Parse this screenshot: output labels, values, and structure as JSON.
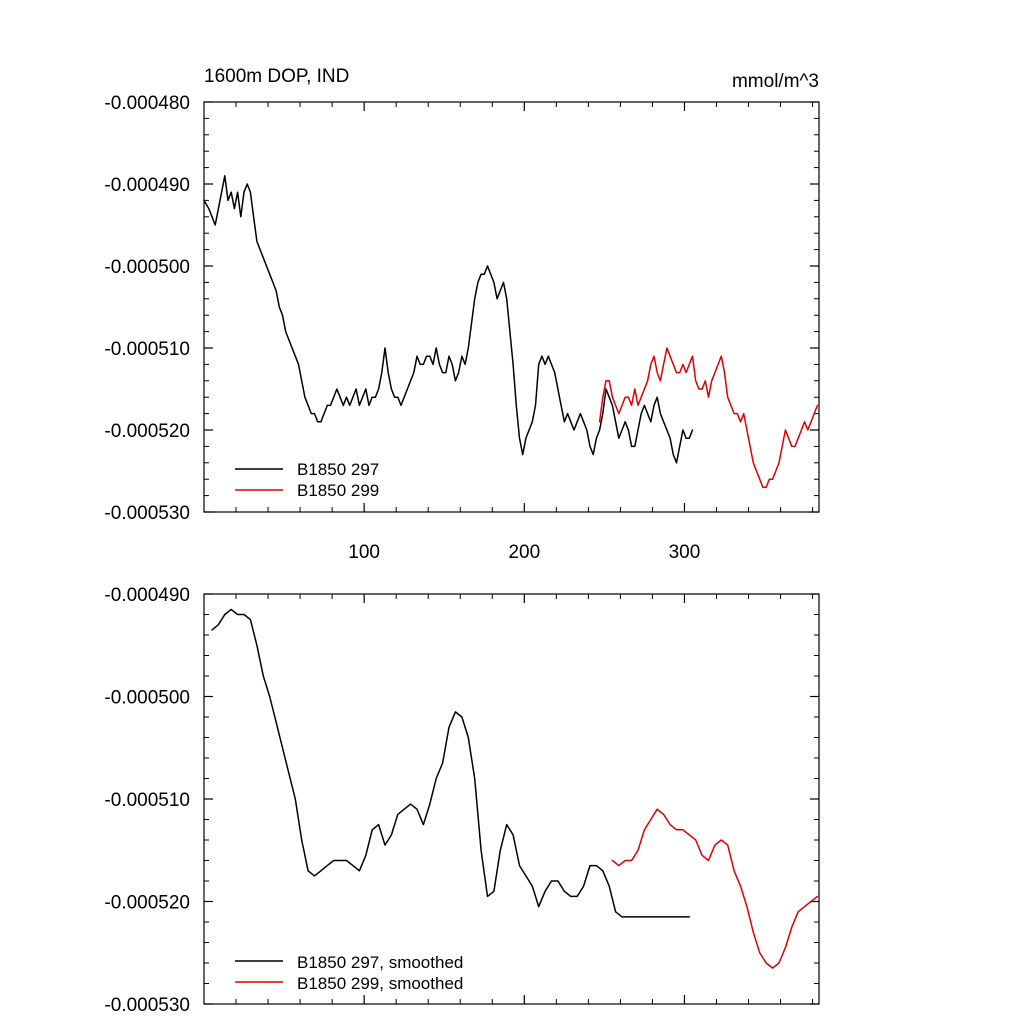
{
  "chart_data": [
    {
      "type": "line",
      "title": "1600m DOP, IND",
      "units": "mmol/m^3",
      "xlim": [
        0,
        384
      ],
      "ylim": [
        -0.00053,
        -0.00048
      ],
      "xticks": [
        100,
        200,
        300
      ],
      "xtick_labels": [
        "100",
        "200",
        "300"
      ],
      "yticks": [
        -0.00048,
        -0.00049,
        -0.0005,
        -0.00051,
        -0.00052,
        -0.00053
      ],
      "ytick_labels": [
        "-0.000480",
        "-0.000490",
        "-0.000500",
        "-0.000510",
        "-0.000520",
        "-0.000530"
      ],
      "legend_position": "bottom-left",
      "series": [
        {
          "name": "B1850 297",
          "color": "#000000",
          "x": [
            0,
            3,
            5,
            7,
            9,
            11,
            13,
            15,
            17,
            19,
            21,
            23,
            25,
            27,
            29,
            31,
            33,
            35,
            37,
            39,
            41,
            43,
            45,
            47,
            49,
            51,
            53,
            55,
            57,
            59,
            61,
            63,
            65,
            67,
            69,
            71,
            73,
            75,
            77,
            79,
            81,
            83,
            85,
            87,
            89,
            91,
            93,
            95,
            97,
            99,
            101,
            103,
            105,
            107,
            109,
            111,
            113,
            115,
            117,
            119,
            121,
            123,
            125,
            127,
            129,
            131,
            133,
            135,
            137,
            139,
            141,
            143,
            145,
            147,
            149,
            151,
            153,
            155,
            157,
            159,
            161,
            163,
            165,
            167,
            169,
            171,
            173,
            175,
            177,
            179,
            181,
            183,
            185,
            187,
            189,
            191,
            193,
            195,
            197,
            199,
            201,
            203,
            205,
            207,
            209,
            211,
            213,
            215,
            217,
            219,
            221,
            223,
            225,
            227,
            229,
            231,
            233,
            235,
            237,
            239,
            241,
            243,
            245,
            247,
            249,
            251,
            253,
            255,
            257,
            259,
            261,
            263,
            265,
            267,
            269,
            271,
            273,
            275,
            277,
            279,
            281,
            283,
            285,
            287,
            289,
            291,
            293,
            295,
            297,
            299,
            301,
            303,
            305
          ],
          "y": [
            -0.000492,
            -0.000493,
            -0.000494,
            -0.000495,
            -0.000493,
            -0.000491,
            -0.000489,
            -0.000492,
            -0.000491,
            -0.000493,
            -0.000491,
            -0.000494,
            -0.000491,
            -0.00049,
            -0.000491,
            -0.000494,
            -0.000497,
            -0.000498,
            -0.000499,
            -0.0005,
            -0.000501,
            -0.000502,
            -0.000503,
            -0.000505,
            -0.000506,
            -0.000508,
            -0.000509,
            -0.00051,
            -0.000511,
            -0.000512,
            -0.000514,
            -0.000516,
            -0.000517,
            -0.000518,
            -0.000518,
            -0.000519,
            -0.000519,
            -0.000518,
            -0.000517,
            -0.000517,
            -0.000516,
            -0.000515,
            -0.000516,
            -0.000517,
            -0.000516,
            -0.000517,
            -0.000516,
            -0.000515,
            -0.000517,
            -0.000516,
            -0.000515,
            -0.000517,
            -0.000516,
            -0.000516,
            -0.000515,
            -0.000513,
            -0.00051,
            -0.000513,
            -0.000515,
            -0.000516,
            -0.000516,
            -0.000517,
            -0.000516,
            -0.000515,
            -0.000514,
            -0.000513,
            -0.000511,
            -0.000512,
            -0.000512,
            -0.000511,
            -0.000511,
            -0.000512,
            -0.00051,
            -0.000512,
            -0.000513,
            -0.000513,
            -0.000511,
            -0.000512,
            -0.000514,
            -0.000513,
            -0.000511,
            -0.000512,
            -0.00051,
            -0.000507,
            -0.000504,
            -0.000502,
            -0.000501,
            -0.000501,
            -0.0005,
            -0.000501,
            -0.000502,
            -0.000504,
            -0.000503,
            -0.000502,
            -0.000504,
            -0.000508,
            -0.000512,
            -0.000517,
            -0.000521,
            -0.000523,
            -0.000521,
            -0.00052,
            -0.000519,
            -0.000517,
            -0.000512,
            -0.000511,
            -0.000512,
            -0.000511,
            -0.000512,
            -0.000513,
            -0.000515,
            -0.000517,
            -0.000519,
            -0.000518,
            -0.000519,
            -0.00052,
            -0.000519,
            -0.000518,
            -0.000519,
            -0.00052,
            -0.000522,
            -0.000523,
            -0.000521,
            -0.00052,
            -0.000518,
            -0.000515,
            -0.000516,
            -0.000517,
            -0.000519,
            -0.000521,
            -0.00052,
            -0.000519,
            -0.00052,
            -0.000522,
            -0.000522,
            -0.00052,
            -0.000518,
            -0.000517,
            -0.000518,
            -0.000519,
            -0.000517,
            -0.000516,
            -0.000518,
            -0.000519,
            -0.00052,
            -0.000521,
            -0.000523,
            -0.000524,
            -0.000522,
            -0.00052,
            -0.000521,
            -0.000521,
            -0.00052
          ]
        },
        {
          "name": "B1850 299",
          "color": "#e00000",
          "x": [
            247,
            249,
            251,
            253,
            255,
            257,
            259,
            261,
            263,
            265,
            267,
            269,
            271,
            273,
            275,
            277,
            279,
            281,
            283,
            285,
            287,
            289,
            291,
            293,
            295,
            297,
            299,
            301,
            303,
            305,
            307,
            309,
            311,
            313,
            315,
            317,
            319,
            321,
            323,
            325,
            327,
            329,
            331,
            333,
            335,
            337,
            339,
            341,
            343,
            345,
            347,
            349,
            351,
            353,
            355,
            357,
            359,
            361,
            363,
            365,
            367,
            369,
            371,
            373,
            375,
            377,
            379,
            381,
            383
          ],
          "y": [
            -0.000519,
            -0.000516,
            -0.000514,
            -0.000514,
            -0.000516,
            -0.000517,
            -0.000518,
            -0.000517,
            -0.000516,
            -0.000516,
            -0.000517,
            -0.000515,
            -0.000517,
            -0.000516,
            -0.000515,
            -0.000514,
            -0.000512,
            -0.000511,
            -0.000513,
            -0.000514,
            -0.000512,
            -0.00051,
            -0.000511,
            -0.000512,
            -0.000513,
            -0.000513,
            -0.000512,
            -0.000513,
            -0.000512,
            -0.000511,
            -0.000514,
            -0.000515,
            -0.000515,
            -0.000514,
            -0.000516,
            -0.000514,
            -0.000513,
            -0.000512,
            -0.000511,
            -0.000513,
            -0.000516,
            -0.000517,
            -0.000518,
            -0.000518,
            -0.000519,
            -0.000518,
            -0.00052,
            -0.000522,
            -0.000524,
            -0.000525,
            -0.000526,
            -0.000527,
            -0.000527,
            -0.000526,
            -0.000526,
            -0.000525,
            -0.000524,
            -0.000522,
            -0.00052,
            -0.000521,
            -0.000522,
            -0.000522,
            -0.000521,
            -0.00052,
            -0.000519,
            -0.00052,
            -0.000519,
            -0.000518,
            -0.000517
          ]
        }
      ]
    },
    {
      "type": "line",
      "xlim": [
        0,
        384
      ],
      "ylim": [
        -0.00053,
        -0.00049
      ],
      "yticks": [
        -0.00049,
        -0.0005,
        -0.00051,
        -0.00052,
        -0.00053
      ],
      "ytick_labels": [
        "-0.000490",
        "-0.000500",
        "-0.000510",
        "-0.000520",
        "-0.000530"
      ],
      "legend_position": "bottom-left",
      "series": [
        {
          "name": "B1850 297, smoothed",
          "color": "#000000",
          "x": [
            5,
            9,
            13,
            17,
            21,
            25,
            29,
            33,
            37,
            41,
            45,
            49,
            53,
            57,
            61,
            65,
            69,
            73,
            77,
            81,
            85,
            89,
            93,
            97,
            101,
            105,
            109,
            113,
            117,
            121,
            125,
            129,
            133,
            137,
            141,
            145,
            149,
            153,
            157,
            161,
            165,
            169,
            173,
            177,
            181,
            185,
            189,
            193,
            197,
            201,
            205,
            209,
            213,
            217,
            221,
            225,
            229,
            233,
            237,
            241,
            245,
            249,
            253,
            257,
            261,
            265,
            269,
            273,
            277,
            281,
            285,
            289,
            293,
            297,
            301,
            303
          ],
          "y": [
            -0.0004935,
            -0.000493,
            -0.000492,
            -0.0004915,
            -0.000492,
            -0.000492,
            -0.0004925,
            -0.000495,
            -0.000498,
            -0.0005,
            -0.0005025,
            -0.000505,
            -0.0005075,
            -0.00051,
            -0.000514,
            -0.000517,
            -0.0005175,
            -0.000517,
            -0.0005165,
            -0.000516,
            -0.000516,
            -0.000516,
            -0.0005165,
            -0.000517,
            -0.0005155,
            -0.000513,
            -0.0005125,
            -0.0005145,
            -0.0005135,
            -0.0005115,
            -0.000511,
            -0.0005105,
            -0.000511,
            -0.0005125,
            -0.0005105,
            -0.000508,
            -0.0005065,
            -0.000503,
            -0.0005015,
            -0.000502,
            -0.000504,
            -0.000508,
            -0.000515,
            -0.0005195,
            -0.000519,
            -0.000515,
            -0.0005125,
            -0.0005135,
            -0.0005165,
            -0.0005175,
            -0.0005185,
            -0.0005205,
            -0.000519,
            -0.000518,
            -0.000518,
            -0.000519,
            -0.0005195,
            -0.0005195,
            -0.0005185,
            -0.0005165,
            -0.0005165,
            -0.000517,
            -0.0005185,
            -0.000521,
            -0.0005215,
            -0.0005215,
            -0.0005215,
            -0.0005215,
            -0.0005215,
            -0.0005215,
            -0.0005215,
            -0.0005215,
            -0.0005215,
            -0.0005215,
            -0.0005215,
            -0.0005215
          ]
        },
        {
          "name": "B1850 299, smoothed",
          "color": "#e00000",
          "x": [
            255,
            259,
            263,
            267,
            271,
            275,
            279,
            283,
            287,
            291,
            295,
            299,
            303,
            307,
            311,
            315,
            319,
            323,
            327,
            331,
            335,
            339,
            343,
            347,
            351,
            355,
            359,
            363,
            367,
            371,
            375,
            379,
            383
          ],
          "y": [
            -0.000516,
            -0.0005165,
            -0.000516,
            -0.000516,
            -0.000515,
            -0.000513,
            -0.000512,
            -0.000511,
            -0.0005115,
            -0.0005125,
            -0.000513,
            -0.000513,
            -0.0005135,
            -0.000514,
            -0.0005155,
            -0.000516,
            -0.0005145,
            -0.000514,
            -0.0005145,
            -0.000517,
            -0.0005185,
            -0.0005205,
            -0.000523,
            -0.000525,
            -0.000526,
            -0.0005265,
            -0.000526,
            -0.0005245,
            -0.0005225,
            -0.000521,
            -0.0005205,
            -0.00052,
            -0.0005195
          ]
        }
      ]
    }
  ]
}
